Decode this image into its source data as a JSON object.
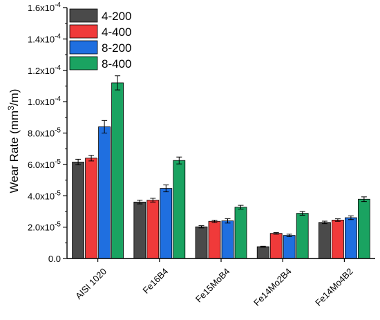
{
  "chart_data": {
    "type": "bar",
    "title": "",
    "xlabel": "",
    "ylabel": {
      "base": "Wear Rate (mm",
      "sup": "3",
      "tail": "/m)"
    },
    "ylim": [
      0,
      0.00016
    ],
    "yticks": [
      {
        "value": 0.0,
        "mantissa": "0.0",
        "exp": ""
      },
      {
        "value": 2e-05,
        "mantissa": "2.0x10",
        "exp": "-5"
      },
      {
        "value": 4e-05,
        "mantissa": "4.0x10",
        "exp": "-5"
      },
      {
        "value": 6e-05,
        "mantissa": "6.0x10",
        "exp": "-5"
      },
      {
        "value": 8e-05,
        "mantissa": "8.0x10",
        "exp": "-5"
      },
      {
        "value": 0.0001,
        "mantissa": "1.0x10",
        "exp": "-4"
      },
      {
        "value": 0.00012,
        "mantissa": "1.2x10",
        "exp": "-4"
      },
      {
        "value": 0.00014,
        "mantissa": "1.4x10",
        "exp": "-4"
      },
      {
        "value": 0.00016,
        "mantissa": "1.6x10",
        "exp": "-4"
      }
    ],
    "categories": [
      "AISI 1020",
      "Fe16B4",
      "Fe15MoB4",
      "Fe14Mo2B4",
      "Fe14Mo4B2"
    ],
    "series": [
      {
        "name": "4-200",
        "color": "#4a4a4a",
        "values": [
          6.15e-05,
          3.6e-05,
          2.02e-05,
          7.5e-06,
          2.3e-05
        ],
        "errors": [
          1.8e-06,
          1.2e-06,
          7e-07,
          3e-07,
          8e-07
        ]
      },
      {
        "name": "4-400",
        "color": "#f03a3a",
        "values": [
          6.4e-05,
          3.72e-05,
          2.37e-05,
          1.6e-05,
          2.45e-05
        ],
        "errors": [
          1.8e-06,
          1.2e-06,
          7e-07,
          5e-07,
          8e-07
        ]
      },
      {
        "name": "8-200",
        "color": "#1f6fe0",
        "values": [
          8.4e-05,
          4.47e-05,
          2.4e-05,
          1.47e-05,
          2.6e-05
        ],
        "errors": [
          4e-06,
          2.2e-06,
          1.4e-06,
          8e-07,
          1.2e-06
        ]
      },
      {
        "name": "8-400",
        "color": "#1aa361",
        "values": [
          0.000112,
          6.25e-05,
          3.27e-05,
          2.88e-05,
          3.78e-05
        ],
        "errors": [
          4.5e-06,
          2.2e-06,
          1.2e-06,
          1.2e-06,
          1.5e-06
        ]
      }
    ],
    "legend": "top-left",
    "grid": false
  }
}
